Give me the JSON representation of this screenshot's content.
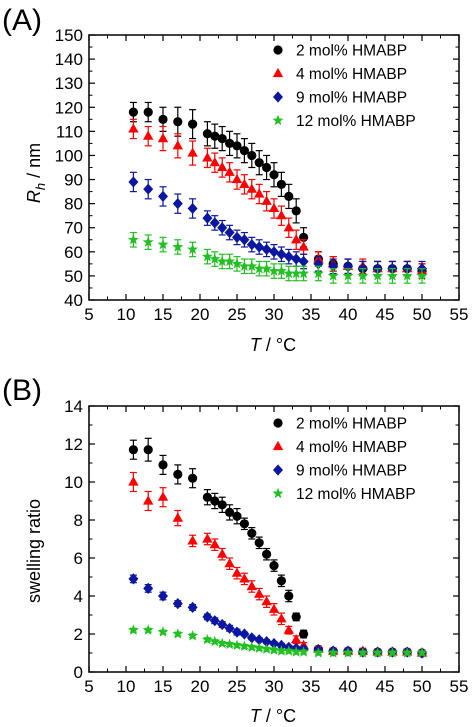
{
  "panels": [
    {
      "label": "(A)",
      "legend_position": "top-right",
      "chart_data": {
        "type": "scatter",
        "xlabel_symbol": "T",
        "xlabel_unit": " / °C",
        "ylabel_symbol": "R",
        "ylabel_subscript": "h",
        "ylabel_unit": " / nm",
        "xlim": [
          5,
          55
        ],
        "ylim": [
          40,
          150
        ],
        "xticks": [
          5,
          10,
          15,
          20,
          25,
          30,
          35,
          40,
          45,
          50,
          55
        ],
        "yticks": [
          40,
          50,
          60,
          70,
          80,
          90,
          100,
          110,
          120,
          130,
          140,
          150
        ],
        "grid": false,
        "series": [
          {
            "name": "2 mol% HMABP",
            "color": "#000000",
            "marker": "circle",
            "x": [
              11,
              13,
              15,
              17,
              19,
              21,
              22,
              23,
              24,
              25,
              26,
              27,
              28,
              29,
              30,
              31,
              32,
              33,
              34,
              36,
              38,
              40,
              42,
              44,
              46,
              48,
              50
            ],
            "y": [
              118,
              118,
              115,
              114,
              113,
              109,
              108,
              107,
              105,
              104,
              102,
              100,
              97,
              95,
              92,
              88,
              83,
              77,
              66,
              57,
              55,
              54,
              53,
              53,
              53,
              53,
              52
            ],
            "err": [
              4,
              4,
              5,
              6,
              6,
              5,
              5,
              5,
              5,
              5,
              5,
              5,
              5,
              5,
              5,
              5,
              5,
              5,
              4,
              3,
              3,
              3,
              3,
              3,
              3,
              3,
              3
            ]
          },
          {
            "name": "4 mol% HMABP",
            "color": "#ff0000",
            "marker": "triangle",
            "x": [
              11,
              13,
              15,
              17,
              19,
              21,
              22,
              23,
              24,
              25,
              26,
              27,
              28,
              29,
              30,
              31,
              32,
              33,
              34,
              36,
              38,
              40,
              42,
              44,
              46,
              48,
              50
            ],
            "y": [
              111,
              108,
              107,
              104,
              101,
              99,
              97,
              95,
              93,
              90,
              88,
              86,
              84,
              81,
              78,
              75,
              70,
              65,
              62,
              57,
              55,
              54,
              54,
              53,
              53,
              53,
              52
            ],
            "err": [
              4,
              4,
              5,
              5,
              5,
              4,
              4,
              4,
              4,
              4,
              4,
              4,
              4,
              4,
              4,
              4,
              4,
              4,
              3,
              3,
              3,
              3,
              3,
              3,
              3,
              3,
              3
            ]
          },
          {
            "name": "9 mol% HMABP",
            "color": "#0b17a0",
            "marker": "diamond",
            "x": [
              11,
              13,
              15,
              17,
              19,
              21,
              22,
              23,
              24,
              25,
              26,
              27,
              28,
              29,
              30,
              31,
              32,
              33,
              34,
              36,
              38,
              40,
              42,
              44,
              46,
              48,
              50
            ],
            "y": [
              89,
              86,
              83,
              80,
              78,
              74,
              72,
              70,
              68,
              66,
              65,
              63,
              62,
              61,
              60,
              59,
              58,
              57,
              56,
              55,
              54,
              54,
              53,
              53,
              53,
              53,
              53
            ],
            "err": [
              4,
              4,
              4,
              4,
              4,
              3,
              3,
              3,
              3,
              3,
              3,
              3,
              3,
              3,
              3,
              3,
              3,
              3,
              3,
              3,
              3,
              3,
              3,
              3,
              3,
              3,
              3
            ]
          },
          {
            "name": "12 mol% HMABP",
            "color": "#22c022",
            "marker": "star",
            "x": [
              11,
              13,
              15,
              17,
              19,
              21,
              22,
              23,
              24,
              25,
              26,
              27,
              28,
              29,
              30,
              31,
              32,
              33,
              34,
              36,
              38,
              40,
              42,
              44,
              46,
              48,
              50
            ],
            "y": [
              65,
              64,
              63,
              62,
              61,
              58,
              57,
              56,
              56,
              55,
              54,
              54,
              53,
              53,
              52,
              52,
              51,
              51,
              51,
              51,
              50,
              50,
              50,
              50,
              50,
              50,
              50
            ],
            "err": [
              3,
              3,
              3,
              3,
              3,
              3,
              3,
              3,
              3,
              3,
              3,
              3,
              3,
              3,
              3,
              3,
              3,
              3,
              3,
              3,
              3,
              3,
              3,
              3,
              3,
              3,
              3
            ]
          }
        ]
      }
    },
    {
      "label": "(B)",
      "legend_position": "top-right",
      "chart_data": {
        "type": "scatter",
        "xlabel_symbol": "T",
        "xlabel_unit": " / °C",
        "ylabel": "swelling ratio",
        "xlim": [
          5,
          55
        ],
        "ylim": [
          0,
          14
        ],
        "xticks": [
          5,
          10,
          15,
          20,
          25,
          30,
          35,
          40,
          45,
          50,
          55
        ],
        "yticks": [
          0,
          2,
          4,
          6,
          8,
          10,
          12,
          14
        ],
        "grid": false,
        "series": [
          {
            "name": "2 mol% HMABP",
            "color": "#000000",
            "marker": "circle",
            "x": [
              11,
              13,
              15,
              17,
              19,
              21,
              22,
              23,
              24,
              25,
              26,
              27,
              28,
              29,
              30,
              31,
              32,
              33,
              34,
              36,
              38,
              40,
              42,
              44,
              46,
              48,
              50
            ],
            "y": [
              11.7,
              11.7,
              10.9,
              10.4,
              10.2,
              9.2,
              9.0,
              8.8,
              8.4,
              8.2,
              7.8,
              7.3,
              6.8,
              6.2,
              5.6,
              4.8,
              4.0,
              2.9,
              2.0,
              1.2,
              1.1,
              1.1,
              1.05,
              1.05,
              1.05,
              1.05,
              1.0
            ],
            "err": [
              0.5,
              0.6,
              0.5,
              0.5,
              0.5,
              0.4,
              0.4,
              0.4,
              0.4,
              0.4,
              0.3,
              0.3,
              0.3,
              0.3,
              0.3,
              0.3,
              0.3,
              0.2,
              0.2,
              0.15,
              0.15,
              0.15,
              0.15,
              0.15,
              0.15,
              0.15,
              0.15
            ]
          },
          {
            "name": "4 mol% HMABP",
            "color": "#ff0000",
            "marker": "triangle",
            "x": [
              11,
              13,
              15,
              17,
              19,
              21,
              22,
              23,
              24,
              25,
              26,
              27,
              28,
              29,
              30,
              31,
              32,
              33,
              34,
              36,
              38,
              40,
              42,
              44,
              46,
              48,
              50
            ],
            "y": [
              10.0,
              9.0,
              9.2,
              8.1,
              6.9,
              7.0,
              6.7,
              6.2,
              5.7,
              5.2,
              4.9,
              4.5,
              4.1,
              3.7,
              3.3,
              2.8,
              2.2,
              1.7,
              1.4,
              1.2,
              1.1,
              1.1,
              1.1,
              1.05,
              1.05,
              1.05,
              1.0
            ],
            "err": [
              0.5,
              0.5,
              0.5,
              0.4,
              0.3,
              0.3,
              0.3,
              0.3,
              0.3,
              0.3,
              0.3,
              0.3,
              0.3,
              0.3,
              0.3,
              0.3,
              0.2,
              0.2,
              0.15,
              0.15,
              0.15,
              0.15,
              0.15,
              0.15,
              0.15,
              0.15,
              0.15
            ]
          },
          {
            "name": "9 mol% HMABP",
            "color": "#0b17a0",
            "marker": "diamond",
            "x": [
              11,
              13,
              15,
              17,
              19,
              21,
              22,
              23,
              24,
              25,
              26,
              27,
              28,
              29,
              30,
              31,
              32,
              33,
              34,
              36,
              38,
              40,
              42,
              44,
              46,
              48,
              50
            ],
            "y": [
              4.9,
              4.4,
              4.0,
              3.6,
              3.4,
              2.9,
              2.7,
              2.5,
              2.3,
              2.1,
              2.0,
              1.8,
              1.7,
              1.6,
              1.5,
              1.4,
              1.3,
              1.25,
              1.2,
              1.15,
              1.1,
              1.1,
              1.05,
              1.05,
              1.05,
              1.05,
              1.0
            ],
            "err": [
              0.2,
              0.2,
              0.2,
              0.15,
              0.15,
              0.15,
              0.15,
              0.15,
              0.15,
              0.15,
              0.1,
              0.1,
              0.1,
              0.1,
              0.1,
              0.1,
              0.1,
              0.1,
              0.1,
              0.1,
              0.1,
              0.1,
              0.1,
              0.1,
              0.1,
              0.1,
              0.1
            ]
          },
          {
            "name": "12 mol% HMABP",
            "color": "#22c022",
            "marker": "star",
            "x": [
              11,
              13,
              15,
              17,
              19,
              21,
              22,
              23,
              24,
              25,
              26,
              27,
              28,
              29,
              30,
              31,
              32,
              33,
              34,
              36,
              38,
              40,
              42,
              44,
              46,
              48,
              50
            ],
            "y": [
              2.2,
              2.2,
              2.1,
              2.0,
              1.9,
              1.7,
              1.6,
              1.5,
              1.45,
              1.4,
              1.35,
              1.3,
              1.25,
              1.2,
              1.15,
              1.1,
              1.1,
              1.05,
              1.05,
              1.0,
              1.0,
              1.0,
              1.0,
              1.0,
              1.0,
              1.0,
              1.0
            ],
            "err": [
              0.1,
              0.1,
              0.1,
              0.1,
              0.1,
              0.1,
              0.1,
              0.1,
              0.1,
              0.1,
              0.1,
              0.1,
              0.1,
              0.1,
              0.1,
              0.1,
              0.1,
              0.1,
              0.1,
              0.1,
              0.1,
              0.1,
              0.1,
              0.1,
              0.1,
              0.1,
              0.1
            ]
          }
        ]
      }
    }
  ]
}
